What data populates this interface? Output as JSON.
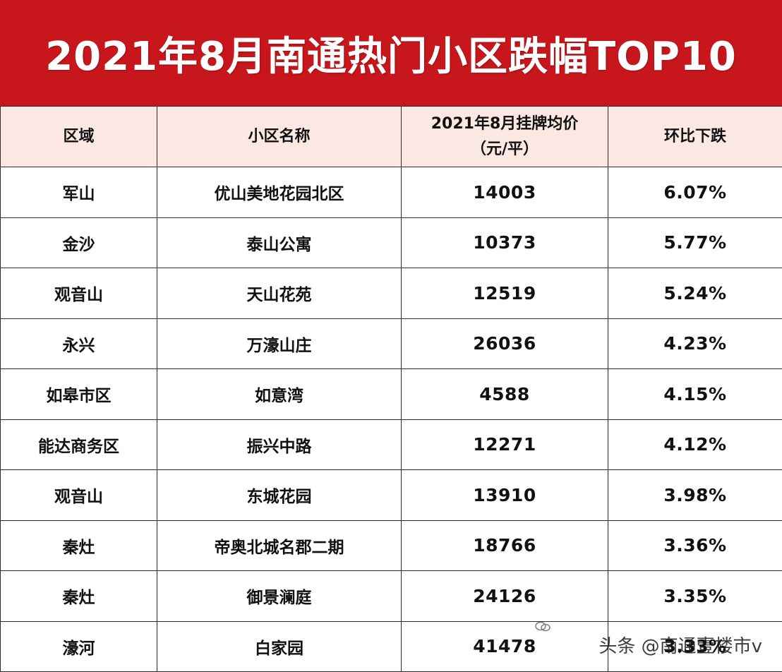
{
  "title": "2021年8月南通热门小区跌幅TOP10",
  "table": {
    "headers": {
      "district": "区域",
      "community": "小区名称",
      "price_line1": "2021年8月挂牌均价",
      "price_line2": "（元/平）",
      "decline": "环比下跌"
    },
    "rows": [
      {
        "district": "军山",
        "community": "优山美地花园北区",
        "price": "14003",
        "decline": "6.07%"
      },
      {
        "district": "金沙",
        "community": "泰山公寓",
        "price": "10373",
        "decline": "5.77%"
      },
      {
        "district": "观音山",
        "community": "天山花苑",
        "price": "12519",
        "decline": "5.24%"
      },
      {
        "district": "永兴",
        "community": "万濠山庄",
        "price": "26036",
        "decline": "4.23%"
      },
      {
        "district": "如皋市区",
        "community": "如意湾",
        "price": "4588",
        "decline": "4.15%"
      },
      {
        "district": "能达商务区",
        "community": "振兴中路",
        "price": "12271",
        "decline": "4.12%"
      },
      {
        "district": "观音山",
        "community": "东城花园",
        "price": "13910",
        "decline": "3.98%"
      },
      {
        "district": "秦灶",
        "community": "帝奥北城名郡二期",
        "price": "18766",
        "decline": "3.36%"
      },
      {
        "district": "秦灶",
        "community": "御景澜庭",
        "price": "24126",
        "decline": "3.35%"
      },
      {
        "district": "濠河",
        "community": "白家园",
        "price": "41478",
        "decline": "3.33%"
      }
    ]
  },
  "watermark": {
    "text": "头条 @南通壹楼市v",
    "icon": "wechat-icon"
  },
  "colors": {
    "title_background": "#c8161d",
    "header_background": "#fbe8e2",
    "border": "#2b2b2b"
  }
}
